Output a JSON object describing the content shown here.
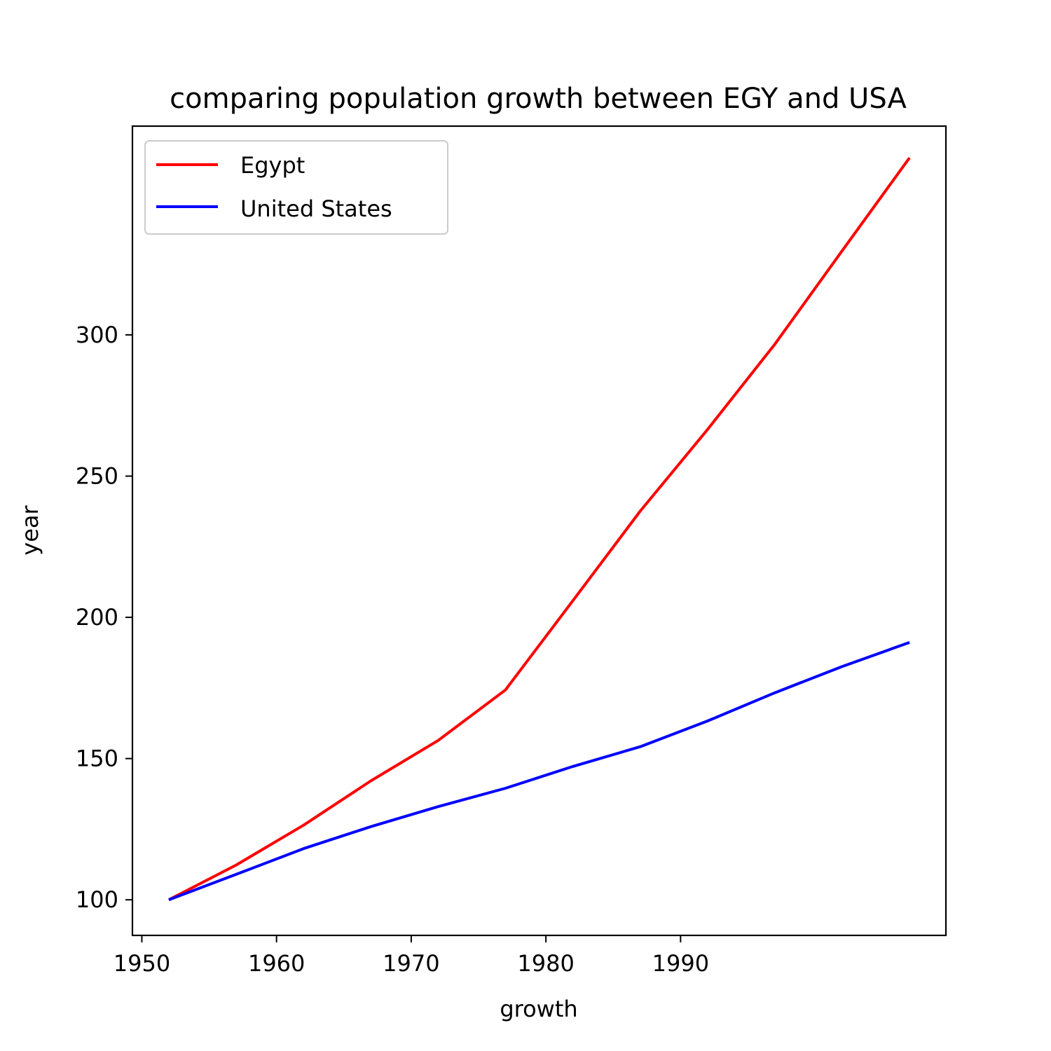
{
  "chart_data": {
    "type": "line",
    "title": "comparing population growth between EGY and USA",
    "xlabel": "growth",
    "ylabel": "year",
    "xlim": [
      1949.3,
      2009.7
    ],
    "ylim": [
      87.4,
      373.9
    ],
    "xticks": [
      1950,
      1960,
      1970,
      1980,
      1990
    ],
    "yticks": [
      100,
      150,
      200,
      250,
      300
    ],
    "x": [
      1952,
      1957,
      1962,
      1967,
      1972,
      1977,
      1982,
      1987,
      1992,
      1997,
      2002,
      2007
    ],
    "series": [
      {
        "name": "Egypt",
        "color": "#ff0000",
        "values": [
          100,
          112.3,
          126.4,
          142.1,
          156.4,
          174.3,
          205.9,
          237.6,
          266.5,
          296.7,
          329.8,
          362.7
        ]
      },
      {
        "name": "United States",
        "color": "#0000ff",
        "values": [
          100,
          109.0,
          118.1,
          125.9,
          133.0,
          139.5,
          147.2,
          154.2,
          163.3,
          173.3,
          182.6,
          191.1
        ]
      }
    ],
    "legend_position": "upper-left",
    "grid": false
  }
}
